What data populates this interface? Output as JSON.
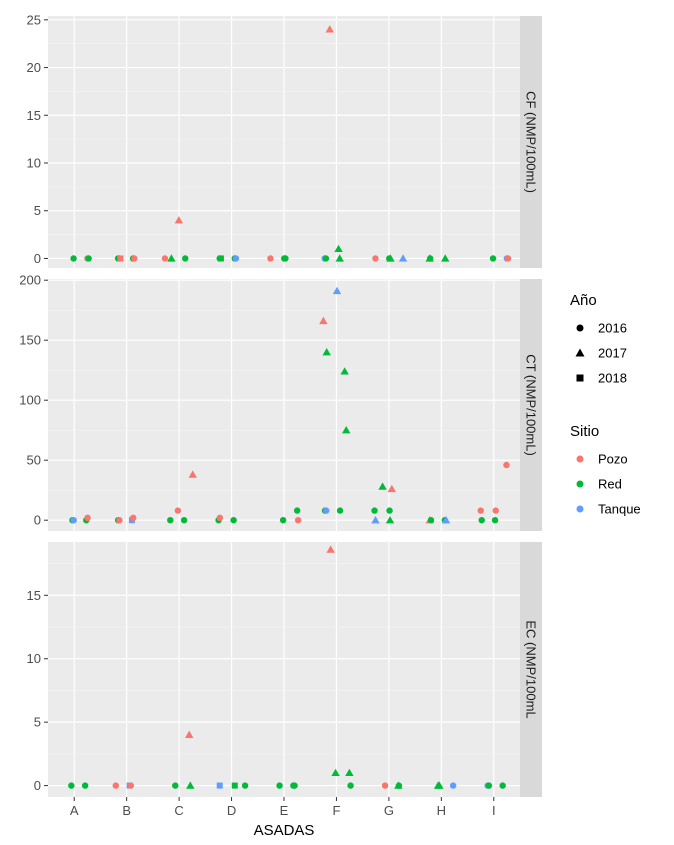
{
  "chart_data": {
    "type": "scatter",
    "xlabel": "ASADAS",
    "categories": [
      "A",
      "B",
      "C",
      "D",
      "E",
      "F",
      "G",
      "H",
      "I"
    ],
    "legend": {
      "shape_title": "Año",
      "shape_entries": [
        {
          "label": "2016",
          "shape": "circle"
        },
        {
          "label": "2017",
          "shape": "triangle"
        },
        {
          "label": "2018",
          "shape": "square"
        }
      ],
      "color_title": "Sitio",
      "color_entries": [
        {
          "label": "Pozo",
          "color": "#F8766D"
        },
        {
          "label": "Red",
          "color": "#00BA38"
        },
        {
          "label": "Tanque",
          "color": "#619CFF"
        }
      ],
      "position": "right"
    },
    "panels": [
      {
        "strip": "CF (NMP/100mL)",
        "ylim": [
          -1.0,
          25.4
        ],
        "yticks": [
          0,
          5,
          10,
          15,
          20,
          25
        ],
        "points": [
          {
            "x": "A",
            "y": 0,
            "sitio": "Pozo",
            "year": "2016"
          },
          {
            "x": "A",
            "y": 0,
            "sitio": "Red",
            "year": "2016"
          },
          {
            "x": "A",
            "y": 0,
            "sitio": "Red",
            "year": "2016"
          },
          {
            "x": "B",
            "y": 0,
            "sitio": "Red",
            "year": "2016"
          },
          {
            "x": "B",
            "y": 0,
            "sitio": "Red",
            "year": "2016"
          },
          {
            "x": "B",
            "y": 0,
            "sitio": "Red",
            "year": "2016"
          },
          {
            "x": "B",
            "y": 0,
            "sitio": "Pozo",
            "year": "2016"
          },
          {
            "x": "B",
            "y": 0,
            "sitio": "Pozo",
            "year": "2018"
          },
          {
            "x": "C",
            "y": 4,
            "sitio": "Pozo",
            "year": "2017"
          },
          {
            "x": "C",
            "y": 0,
            "sitio": "Pozo",
            "year": "2016"
          },
          {
            "x": "C",
            "y": 0,
            "sitio": "Red",
            "year": "2016"
          },
          {
            "x": "C",
            "y": 0,
            "sitio": "Red",
            "year": "2017"
          },
          {
            "x": "D",
            "y": 0,
            "sitio": "Red",
            "year": "2016"
          },
          {
            "x": "D",
            "y": 0,
            "sitio": "Red",
            "year": "2016"
          },
          {
            "x": "D",
            "y": 0,
            "sitio": "Red",
            "year": "2018"
          },
          {
            "x": "D",
            "y": 0,
            "sitio": "Tanque",
            "year": "2016"
          },
          {
            "x": "E",
            "y": 0,
            "sitio": "Red",
            "year": "2016"
          },
          {
            "x": "E",
            "y": 0,
            "sitio": "Pozo",
            "year": "2016"
          },
          {
            "x": "E",
            "y": 0,
            "sitio": "Red",
            "year": "2016"
          },
          {
            "x": "F",
            "y": 24,
            "sitio": "Pozo",
            "year": "2017"
          },
          {
            "x": "F",
            "y": 1,
            "sitio": "Red",
            "year": "2017"
          },
          {
            "x": "F",
            "y": 0,
            "sitio": "Tanque",
            "year": "2016"
          },
          {
            "x": "F",
            "y": 0,
            "sitio": "Red",
            "year": "2017"
          },
          {
            "x": "F",
            "y": 0,
            "sitio": "Red",
            "year": "2016"
          },
          {
            "x": "G",
            "y": 0,
            "sitio": "Tanque",
            "year": "2017"
          },
          {
            "x": "G",
            "y": 0,
            "sitio": "Red",
            "year": "2016"
          },
          {
            "x": "G",
            "y": 0,
            "sitio": "Pozo",
            "year": "2016"
          },
          {
            "x": "G",
            "y": 0,
            "sitio": "Red",
            "year": "2017"
          },
          {
            "x": "H",
            "y": 0,
            "sitio": "Red",
            "year": "2016"
          },
          {
            "x": "H",
            "y": 0,
            "sitio": "Red",
            "year": "2017"
          },
          {
            "x": "H",
            "y": 0,
            "sitio": "Red",
            "year": "2017"
          },
          {
            "x": "I",
            "y": 0,
            "sitio": "Tanque",
            "year": "2016"
          },
          {
            "x": "I",
            "y": 0,
            "sitio": "Red",
            "year": "2016"
          },
          {
            "x": "I",
            "y": 0,
            "sitio": "Pozo",
            "year": "2016"
          }
        ]
      },
      {
        "strip": "CT (NMP/100mL)",
        "ylim": [
          -9,
          201
        ],
        "yticks": [
          0,
          50,
          100,
          150,
          200
        ],
        "points": [
          {
            "x": "A",
            "y": 0,
            "sitio": "Red",
            "year": "2016"
          },
          {
            "x": "A",
            "y": 0,
            "sitio": "Red",
            "year": "2016"
          },
          {
            "x": "A",
            "y": 2,
            "sitio": "Pozo",
            "year": "2016"
          },
          {
            "x": "A",
            "y": 0,
            "sitio": "Tanque",
            "year": "2016"
          },
          {
            "x": "B",
            "y": 0,
            "sitio": "Tanque",
            "year": "2018"
          },
          {
            "x": "B",
            "y": 0,
            "sitio": "Red",
            "year": "2016"
          },
          {
            "x": "B",
            "y": 2,
            "sitio": "Pozo",
            "year": "2016"
          },
          {
            "x": "B",
            "y": 0,
            "sitio": "Pozo",
            "year": "2016"
          },
          {
            "x": "C",
            "y": 8,
            "sitio": "Pozo",
            "year": "2016"
          },
          {
            "x": "C",
            "y": 38,
            "sitio": "Pozo",
            "year": "2017"
          },
          {
            "x": "C",
            "y": 0,
            "sitio": "Red",
            "year": "2016"
          },
          {
            "x": "C",
            "y": 0,
            "sitio": "Red",
            "year": "2016"
          },
          {
            "x": "D",
            "y": 0,
            "sitio": "Red",
            "year": "2016"
          },
          {
            "x": "D",
            "y": 0,
            "sitio": "Red",
            "year": "2016"
          },
          {
            "x": "D",
            "y": 2,
            "sitio": "Pozo",
            "year": "2016"
          },
          {
            "x": "E",
            "y": 8,
            "sitio": "Red",
            "year": "2016"
          },
          {
            "x": "E",
            "y": 0,
            "sitio": "Red",
            "year": "2016"
          },
          {
            "x": "E",
            "y": 0,
            "sitio": "Pozo",
            "year": "2016"
          },
          {
            "x": "F",
            "y": 166,
            "sitio": "Pozo",
            "year": "2017"
          },
          {
            "x": "F",
            "y": 191,
            "sitio": "Tanque",
            "year": "2017"
          },
          {
            "x": "F",
            "y": 140,
            "sitio": "Red",
            "year": "2017"
          },
          {
            "x": "F",
            "y": 124,
            "sitio": "Red",
            "year": "2017"
          },
          {
            "x": "F",
            "y": 75,
            "sitio": "Red",
            "year": "2017"
          },
          {
            "x": "F",
            "y": 8,
            "sitio": "Red",
            "year": "2016"
          },
          {
            "x": "F",
            "y": 8,
            "sitio": "Red",
            "year": "2016"
          },
          {
            "x": "F",
            "y": 8,
            "sitio": "Tanque",
            "year": "2016"
          },
          {
            "x": "G",
            "y": 8,
            "sitio": "Red",
            "year": "2016"
          },
          {
            "x": "G",
            "y": 8,
            "sitio": "Red",
            "year": "2016"
          },
          {
            "x": "G",
            "y": 0,
            "sitio": "Tanque",
            "year": "2017"
          },
          {
            "x": "G",
            "y": 28,
            "sitio": "Red",
            "year": "2017"
          },
          {
            "x": "G",
            "y": 26,
            "sitio": "Pozo",
            "year": "2017"
          },
          {
            "x": "G",
            "y": 0,
            "sitio": "Red",
            "year": "2017"
          },
          {
            "x": "H",
            "y": 0,
            "sitio": "Pozo",
            "year": "2017"
          },
          {
            "x": "H",
            "y": 0,
            "sitio": "Red",
            "year": "2016"
          },
          {
            "x": "H",
            "y": 0,
            "sitio": "Red",
            "year": "2016"
          },
          {
            "x": "H",
            "y": 0,
            "sitio": "Tanque",
            "year": "2017"
          },
          {
            "x": "I",
            "y": 46,
            "sitio": "Pozo",
            "year": "2016"
          },
          {
            "x": "I",
            "y": 8,
            "sitio": "Pozo",
            "year": "2016"
          },
          {
            "x": "I",
            "y": 8,
            "sitio": "Pozo",
            "year": "2016"
          },
          {
            "x": "I",
            "y": 0,
            "sitio": "Red",
            "year": "2016"
          },
          {
            "x": "I",
            "y": 0,
            "sitio": "Red",
            "year": "2016"
          }
        ]
      },
      {
        "strip": "EC (NMP/100mL",
        "ylim": [
          -0.9,
          19.2
        ],
        "yticks": [
          0,
          5,
          10,
          15
        ],
        "points": [
          {
            "x": "A",
            "y": 0,
            "sitio": "Red",
            "year": "2016"
          },
          {
            "x": "A",
            "y": 0,
            "sitio": "Red",
            "year": "2016"
          },
          {
            "x": "B",
            "y": 0,
            "sitio": "Tanque",
            "year": "2018"
          },
          {
            "x": "B",
            "y": 0,
            "sitio": "Pozo",
            "year": "2016"
          },
          {
            "x": "B",
            "y": 0,
            "sitio": "Pozo",
            "year": "2016"
          },
          {
            "x": "C",
            "y": 4,
            "sitio": "Pozo",
            "year": "2017"
          },
          {
            "x": "C",
            "y": 0,
            "sitio": "Red",
            "year": "2016"
          },
          {
            "x": "C",
            "y": 0,
            "sitio": "Red",
            "year": "2017"
          },
          {
            "x": "D",
            "y": 0,
            "sitio": "Tanque",
            "year": "2018"
          },
          {
            "x": "D",
            "y": 0,
            "sitio": "Red",
            "year": "2018"
          },
          {
            "x": "D",
            "y": 0,
            "sitio": "Red",
            "year": "2016"
          },
          {
            "x": "E",
            "y": 0,
            "sitio": "Red",
            "year": "2016"
          },
          {
            "x": "E",
            "y": 0,
            "sitio": "Red",
            "year": "2016"
          },
          {
            "x": "E",
            "y": 0,
            "sitio": "Red",
            "year": "2016"
          },
          {
            "x": "F",
            "y": 18.6,
            "sitio": "Pozo",
            "year": "2017"
          },
          {
            "x": "F",
            "y": 1,
            "sitio": "Red",
            "year": "2017"
          },
          {
            "x": "F",
            "y": 1,
            "sitio": "Red",
            "year": "2017"
          },
          {
            "x": "F",
            "y": 0,
            "sitio": "Red",
            "year": "2016"
          },
          {
            "x": "G",
            "y": 0,
            "sitio": "Red",
            "year": "2016"
          },
          {
            "x": "G",
            "y": 0,
            "sitio": "Pozo",
            "year": "2016"
          },
          {
            "x": "G",
            "y": 0,
            "sitio": "Red",
            "year": "2017"
          },
          {
            "x": "H",
            "y": 0,
            "sitio": "Red",
            "year": "2017"
          },
          {
            "x": "H",
            "y": 0,
            "sitio": "Tanque",
            "year": "2016"
          },
          {
            "x": "H",
            "y": 0,
            "sitio": "Red",
            "year": "2017"
          },
          {
            "x": "I",
            "y": 0,
            "sitio": "Tanque",
            "year": "2016"
          },
          {
            "x": "I",
            "y": 0,
            "sitio": "Red",
            "year": "2016"
          },
          {
            "x": "I",
            "y": 0,
            "sitio": "Red",
            "year": "2016"
          }
        ]
      }
    ]
  }
}
